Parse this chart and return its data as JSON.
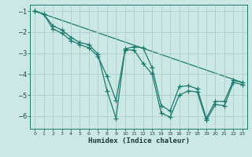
{
  "xlabel": "Humidex (Indice chaleur)",
  "bg_color": "#cce8e4",
  "grid_color": "#aaccca",
  "line_color": "#1a7a6e",
  "xlim": [
    -0.5,
    23.5
  ],
  "ylim": [
    -6.6,
    -0.7
  ],
  "yticks": [
    -6,
    -5,
    -4,
    -3,
    -2,
    -1
  ],
  "xticks": [
    0,
    1,
    2,
    3,
    4,
    5,
    6,
    7,
    8,
    9,
    10,
    11,
    12,
    13,
    14,
    15,
    16,
    17,
    18,
    19,
    20,
    21,
    22,
    23
  ],
  "series1_x": [
    0,
    1,
    2,
    3,
    4,
    5,
    6,
    7,
    8,
    9,
    10,
    11,
    12,
    13,
    14,
    15,
    16,
    17,
    18,
    19,
    20,
    21,
    22,
    23
  ],
  "series1_y": [
    -1.0,
    -1.15,
    -1.7,
    -1.9,
    -2.25,
    -2.5,
    -2.6,
    -3.05,
    -4.8,
    -6.1,
    -2.8,
    -2.7,
    -2.75,
    -3.7,
    -5.5,
    -5.75,
    -4.6,
    -4.55,
    -4.7,
    -6.1,
    -5.3,
    -5.3,
    -4.3,
    -4.4
  ],
  "series2_x": [
    0,
    1,
    2,
    3,
    4,
    5,
    6,
    7,
    8,
    9,
    10,
    11,
    12,
    13,
    14,
    15,
    16,
    17,
    18,
    19,
    20,
    21,
    22,
    23
  ],
  "series2_y": [
    -1.0,
    -1.15,
    -1.85,
    -2.05,
    -2.4,
    -2.6,
    -2.75,
    -3.15,
    -4.1,
    -5.25,
    -2.85,
    -2.85,
    -3.5,
    -4.0,
    -5.85,
    -6.05,
    -5.0,
    -4.8,
    -4.85,
    -6.2,
    -5.45,
    -5.5,
    -4.4,
    -4.5
  ],
  "series3_x": [
    0,
    23
  ],
  "series3_y": [
    -1.0,
    -4.4
  ],
  "marker_size": 4,
  "linewidth": 0.9
}
